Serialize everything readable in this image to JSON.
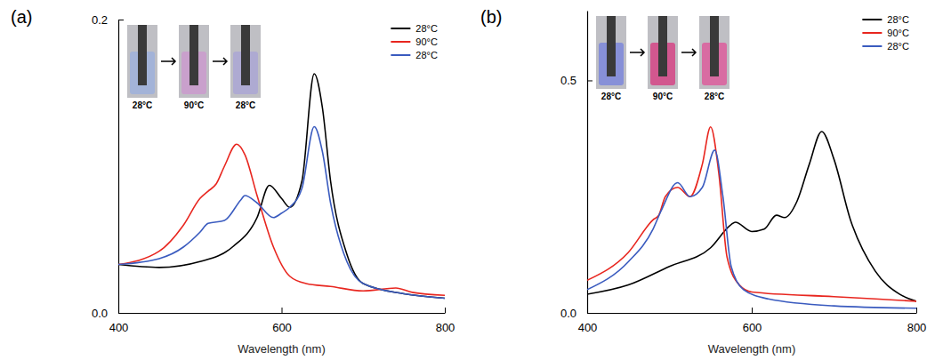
{
  "chart_data": [
    {
      "type": "line",
      "title": "(a)",
      "x_label": "Wavelength (nm)",
      "xlim": [
        400,
        800
      ],
      "xticks": [
        400,
        600,
        800
      ],
      "ylim": [
        0,
        0.2
      ],
      "yticks": [
        {
          "value": 0,
          "label": "0.0"
        },
        {
          "value": 0.2,
          "label": "0.2"
        }
      ],
      "legend": "upper right",
      "annotations": [
        "28°C",
        "90°C",
        "28°C"
      ],
      "series": [
        {
          "name": "28°C",
          "color": "#000000",
          "x": [
            400,
            450,
            500,
            540,
            570,
            585,
            600,
            610,
            625,
            640,
            650,
            660,
            680,
            700,
            750,
            800
          ],
          "values": [
            0.033,
            0.031,
            0.035,
            0.045,
            0.065,
            0.087,
            0.078,
            0.072,
            0.09,
            0.163,
            0.14,
            0.09,
            0.04,
            0.02,
            0.013,
            0.01
          ]
        },
        {
          "name": "90°C",
          "color": "#e8261f",
          "x": [
            400,
            450,
            480,
            500,
            510,
            520,
            530,
            545,
            555,
            570,
            590,
            610,
            630,
            660,
            700,
            740,
            760,
            800
          ],
          "values": [
            0.033,
            0.042,
            0.06,
            0.078,
            0.083,
            0.088,
            0.1,
            0.115,
            0.108,
            0.08,
            0.045,
            0.025,
            0.02,
            0.018,
            0.015,
            0.017,
            0.014,
            0.012
          ]
        },
        {
          "name": "28°C",
          "color": "#3a5bbf",
          "x": [
            400,
            450,
            480,
            500,
            510,
            530,
            550,
            555,
            570,
            590,
            600,
            610,
            625,
            640,
            650,
            660,
            680,
            700,
            750,
            800
          ],
          "values": [
            0.033,
            0.037,
            0.045,
            0.055,
            0.061,
            0.063,
            0.077,
            0.08,
            0.075,
            0.065,
            0.068,
            0.072,
            0.085,
            0.127,
            0.11,
            0.075,
            0.035,
            0.02,
            0.013,
            0.01
          ]
        }
      ]
    },
    {
      "type": "line",
      "title": "(b)",
      "x_label": "Wavelength (nm)",
      "xlim": [
        400,
        800
      ],
      "xticks": [
        400,
        600,
        800
      ],
      "ylim": [
        0,
        0.65
      ],
      "yticks": [
        {
          "value": 0,
          "label": "0.0"
        },
        {
          "value": 0.5,
          "label": "0.5"
        }
      ],
      "legend": "upper right",
      "annotations": [
        "28°C",
        "90°C",
        "28°C"
      ],
      "series": [
        {
          "name": "28°C",
          "color": "#000000",
          "x": [
            400,
            450,
            500,
            550,
            575,
            580,
            600,
            615,
            630,
            640,
            655,
            670,
            685,
            700,
            720,
            750,
            780,
            800
          ],
          "values": [
            0.04,
            0.06,
            0.1,
            0.14,
            0.19,
            0.195,
            0.175,
            0.18,
            0.21,
            0.205,
            0.24,
            0.32,
            0.39,
            0.33,
            0.2,
            0.09,
            0.04,
            0.025
          ]
        },
        {
          "name": "90°C",
          "color": "#e8261f",
          "x": [
            400,
            450,
            480,
            487,
            495,
            510,
            525,
            540,
            550,
            560,
            570,
            585,
            600,
            700,
            800
          ],
          "values": [
            0.07,
            0.13,
            0.2,
            0.21,
            0.25,
            0.27,
            0.25,
            0.32,
            0.4,
            0.3,
            0.12,
            0.06,
            0.045,
            0.035,
            0.025
          ]
        },
        {
          "name": "28°C",
          "color": "#3a5bbf",
          "x": [
            400,
            450,
            480,
            490,
            510,
            525,
            540,
            555,
            565,
            575,
            590,
            620,
            700,
            800
          ],
          "values": [
            0.05,
            0.11,
            0.18,
            0.22,
            0.28,
            0.25,
            0.27,
            0.35,
            0.25,
            0.1,
            0.05,
            0.03,
            0.015,
            0.01
          ]
        }
      ]
    }
  ]
}
